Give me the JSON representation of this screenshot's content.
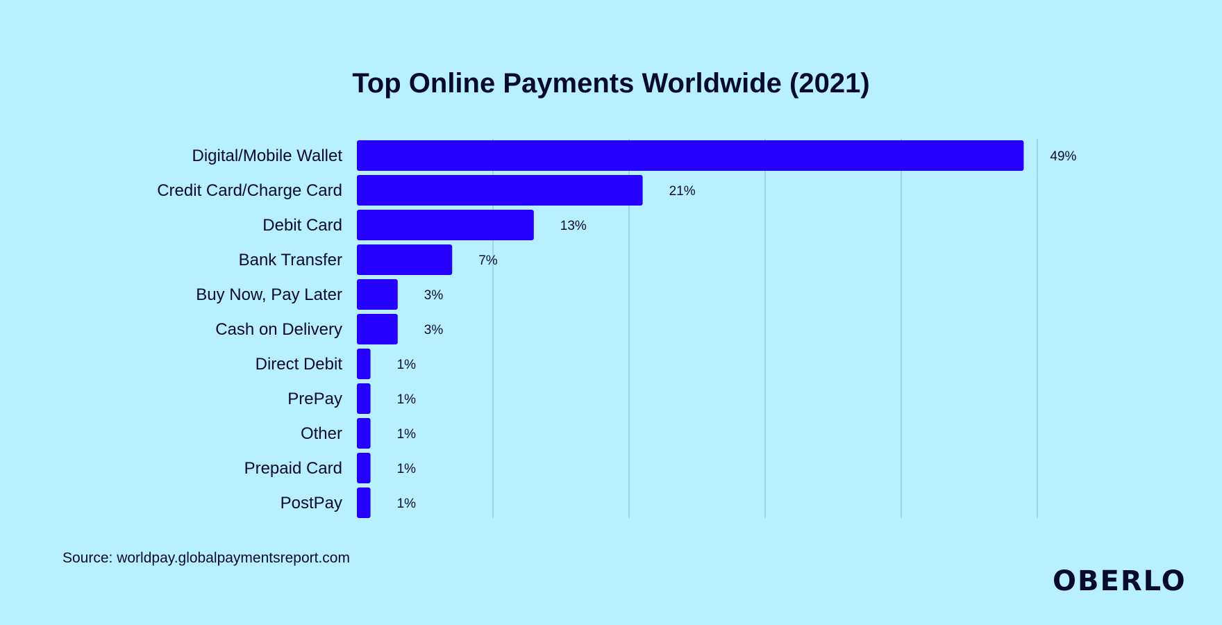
{
  "chart_data": {
    "type": "bar",
    "orientation": "horizontal",
    "title": "Top Online Payments Worldwide (2021)",
    "categories": [
      "Digital/Mobile Wallet",
      "Credit Card/Charge Card",
      "Debit Card",
      "Bank Transfer",
      "Buy Now, Pay Later",
      "Cash on Delivery",
      "Direct Debit",
      "PrePay",
      "Other",
      "Prepaid Card",
      "PostPay"
    ],
    "values": [
      49,
      21,
      13,
      7,
      3,
      3,
      1,
      1,
      1,
      1,
      1
    ],
    "data_labels": [
      "49%",
      "21%",
      "13%",
      "7%",
      "3%",
      "3%",
      "1%",
      "1%",
      "1%",
      "1%",
      "1%"
    ],
    "xlim": [
      0,
      50
    ],
    "grid": true,
    "bar_color": "#2600ff",
    "gridline_color": "#8fc6d8"
  },
  "source": "Source: worldpay.globalpaymentsreport.com",
  "logo": "OBERLO",
  "colors": {
    "background": "#b8f0ff",
    "text": "#070a2e"
  }
}
